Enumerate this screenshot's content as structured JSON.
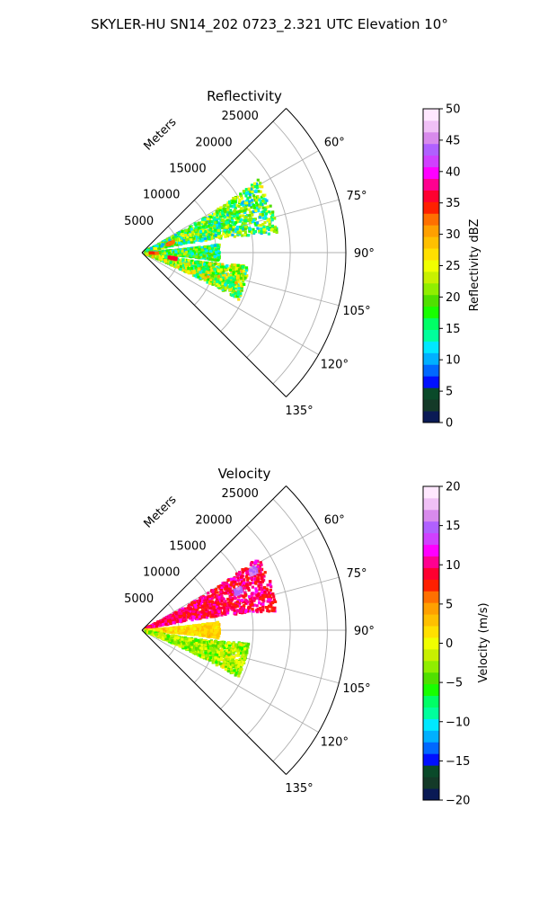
{
  "figure": {
    "title": "SKYLER-HU  SN14_202  0723_2.321 UTC Elevation 10°"
  },
  "chart_data": [
    {
      "type": "heatmap",
      "projection": "polar-sector",
      "title": "Reflectivity",
      "range_label": "Meters",
      "range_ticks": [
        "5000",
        "10000",
        "15000",
        "20000",
        "25000"
      ],
      "range_tick_values": [
        5000,
        10000,
        15000,
        20000,
        25000
      ],
      "range_max": 27500,
      "azimuth_ticks": [
        "60°",
        "75°",
        "90°",
        "105°",
        "120°",
        "135°"
      ],
      "azimuth_tick_values": [
        60,
        75,
        90,
        105,
        120,
        135
      ],
      "azimuth_range": [
        45,
        135
      ],
      "grid": true,
      "colorbar": {
        "label": "Reflectivity dBZ",
        "min": 0,
        "max": 50,
        "ticks": [
          "0",
          "5",
          "10",
          "15",
          "20",
          "25",
          "30",
          "35",
          "40",
          "45",
          "50"
        ],
        "tick_values": [
          0,
          5,
          10,
          15,
          20,
          25,
          30,
          35,
          40,
          45,
          50
        ],
        "colors": [
          "#0a1a55",
          "#143a28",
          "#0a4a2a",
          "#0010ff",
          "#0068ff",
          "#00b0ff",
          "#00e8ff",
          "#00ff9c",
          "#00ff66",
          "#18ff00",
          "#50e000",
          "#90ee00",
          "#c8f000",
          "#f0ff00",
          "#ffe000",
          "#ffc000",
          "#ffa000",
          "#ff7000",
          "#ff2000",
          "#ff0030",
          "#ff0090",
          "#ff00ff",
          "#d040ff",
          "#b060ff",
          "#d88aec",
          "#f0c0f6",
          "#ffe8ff"
        ]
      },
      "echo_lobes": [
        {
          "az": [
            58,
            82
          ],
          "r": [
            500,
            18500
          ],
          "value_range": [
            10,
            26
          ]
        },
        {
          "az": [
            84,
            96
          ],
          "r": [
            500,
            10500
          ],
          "value_range": [
            10,
            24
          ]
        },
        {
          "az": [
            97,
            116
          ],
          "r": [
            500,
            14500
          ],
          "value_range": [
            12,
            30
          ]
        }
      ],
      "hotspots": [
        {
          "az": 100,
          "r": 4200,
          "value": 36
        },
        {
          "az": 72,
          "r": 4000,
          "value": 33
        },
        {
          "az": 92,
          "r": 1600,
          "value": 33
        }
      ]
    },
    {
      "type": "heatmap",
      "projection": "polar-sector",
      "title": "Velocity",
      "range_label": "Meters",
      "range_ticks": [
        "5000",
        "10000",
        "15000",
        "20000",
        "25000"
      ],
      "range_tick_values": [
        5000,
        10000,
        15000,
        20000,
        25000
      ],
      "range_max": 27500,
      "azimuth_ticks": [
        "60°",
        "75°",
        "90°",
        "105°",
        "120°",
        "135°"
      ],
      "azimuth_tick_values": [
        60,
        75,
        90,
        105,
        120,
        135
      ],
      "azimuth_range": [
        45,
        135
      ],
      "grid": true,
      "colorbar": {
        "label": "Velocity (m/s)",
        "min": -20,
        "max": 20,
        "ticks": [
          "−20",
          "−15",
          "−10",
          "−5",
          "0",
          "5",
          "10",
          "15",
          "20"
        ],
        "tick_values": [
          -20,
          -15,
          -10,
          -5,
          0,
          5,
          10,
          15,
          20
        ],
        "colors": [
          "#0a1a55",
          "#143a28",
          "#0a4a2a",
          "#0010ff",
          "#0068ff",
          "#00b0ff",
          "#00e8ff",
          "#00ff9c",
          "#00ff66",
          "#18ff00",
          "#50e000",
          "#90ee00",
          "#c8f000",
          "#f0ff00",
          "#ffe000",
          "#ffc000",
          "#ffa000",
          "#ff7000",
          "#ff2000",
          "#ff0030",
          "#ff0090",
          "#ff00ff",
          "#d040ff",
          "#b060ff",
          "#d88aec",
          "#f0c0f6",
          "#ffe8ff"
        ]
      },
      "echo_lobes": [
        {
          "az": [
            58,
            82
          ],
          "r": [
            500,
            18500
          ],
          "value_range": [
            7,
            12
          ]
        },
        {
          "az": [
            84,
            96
          ],
          "r": [
            500,
            10500
          ],
          "value_range": [
            0,
            4
          ]
        },
        {
          "az": [
            97,
            116
          ],
          "r": [
            500,
            14500
          ],
          "value_range": [
            -6,
            1
          ]
        }
      ],
      "hotspots": [
        {
          "az": 62,
          "r": 17000,
          "value": 16
        },
        {
          "az": 68,
          "r": 14000,
          "value": 15
        }
      ]
    }
  ]
}
